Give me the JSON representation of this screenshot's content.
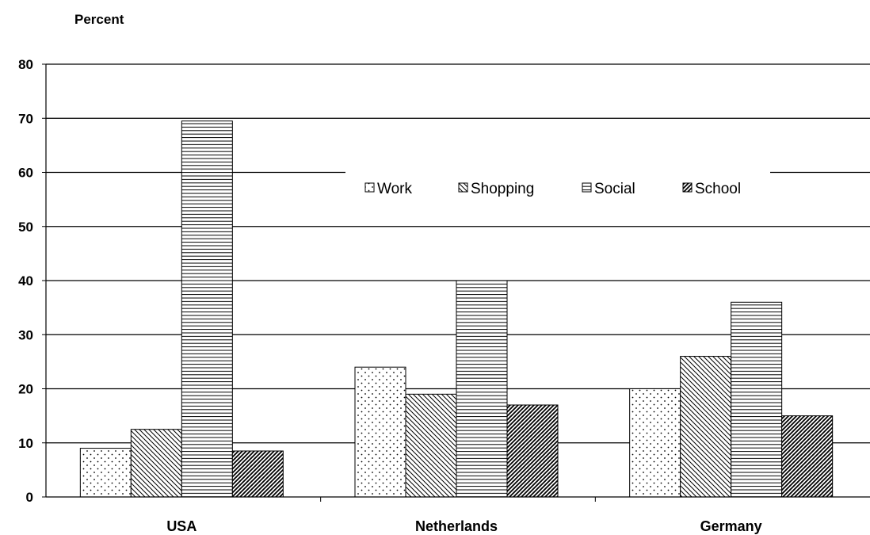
{
  "chart_data": {
    "type": "bar",
    "ylabel": "Percent",
    "ylim": [
      0,
      80
    ],
    "yticks": [
      0,
      10,
      20,
      30,
      40,
      50,
      60,
      70,
      80
    ],
    "categories": [
      "USA",
      "Netherlands",
      "Germany"
    ],
    "series": [
      {
        "name": "Work",
        "values": [
          9,
          24,
          20
        ],
        "pattern": "dots"
      },
      {
        "name": "Shopping",
        "values": [
          12.5,
          19,
          26
        ],
        "pattern": "diag-back"
      },
      {
        "name": "Social",
        "values": [
          69.5,
          40,
          36
        ],
        "pattern": "horizontal"
      },
      {
        "name": "School",
        "values": [
          8.5,
          17,
          15
        ],
        "pattern": "diag-forward"
      }
    ],
    "grid": true,
    "legend_position": "inside-top-center"
  }
}
